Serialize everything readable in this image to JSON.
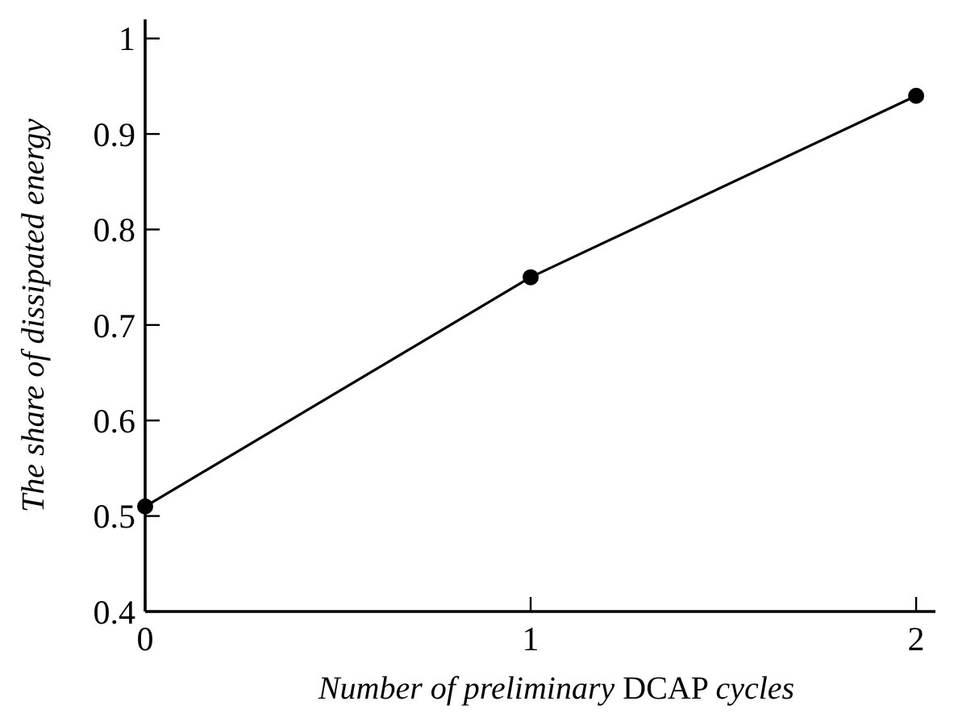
{
  "chart_data": {
    "type": "line",
    "xlabel": "Number of preliminary DCAP cycles",
    "ylabel": "The share of dissipated energy",
    "x": [
      0,
      1,
      2
    ],
    "series": [
      {
        "color": "#000000",
        "values": [
          0.51,
          0.75,
          0.94
        ]
      }
    ],
    "xlim": [
      0,
      2.05
    ],
    "xticks": [
      0,
      1,
      2
    ],
    "ylim": [
      0.4,
      1.02
    ],
    "yticks": [
      0.4,
      0.5,
      0.6,
      0.7,
      0.8,
      0.9,
      1
    ],
    "marker": "circle",
    "line_style": "solid"
  }
}
